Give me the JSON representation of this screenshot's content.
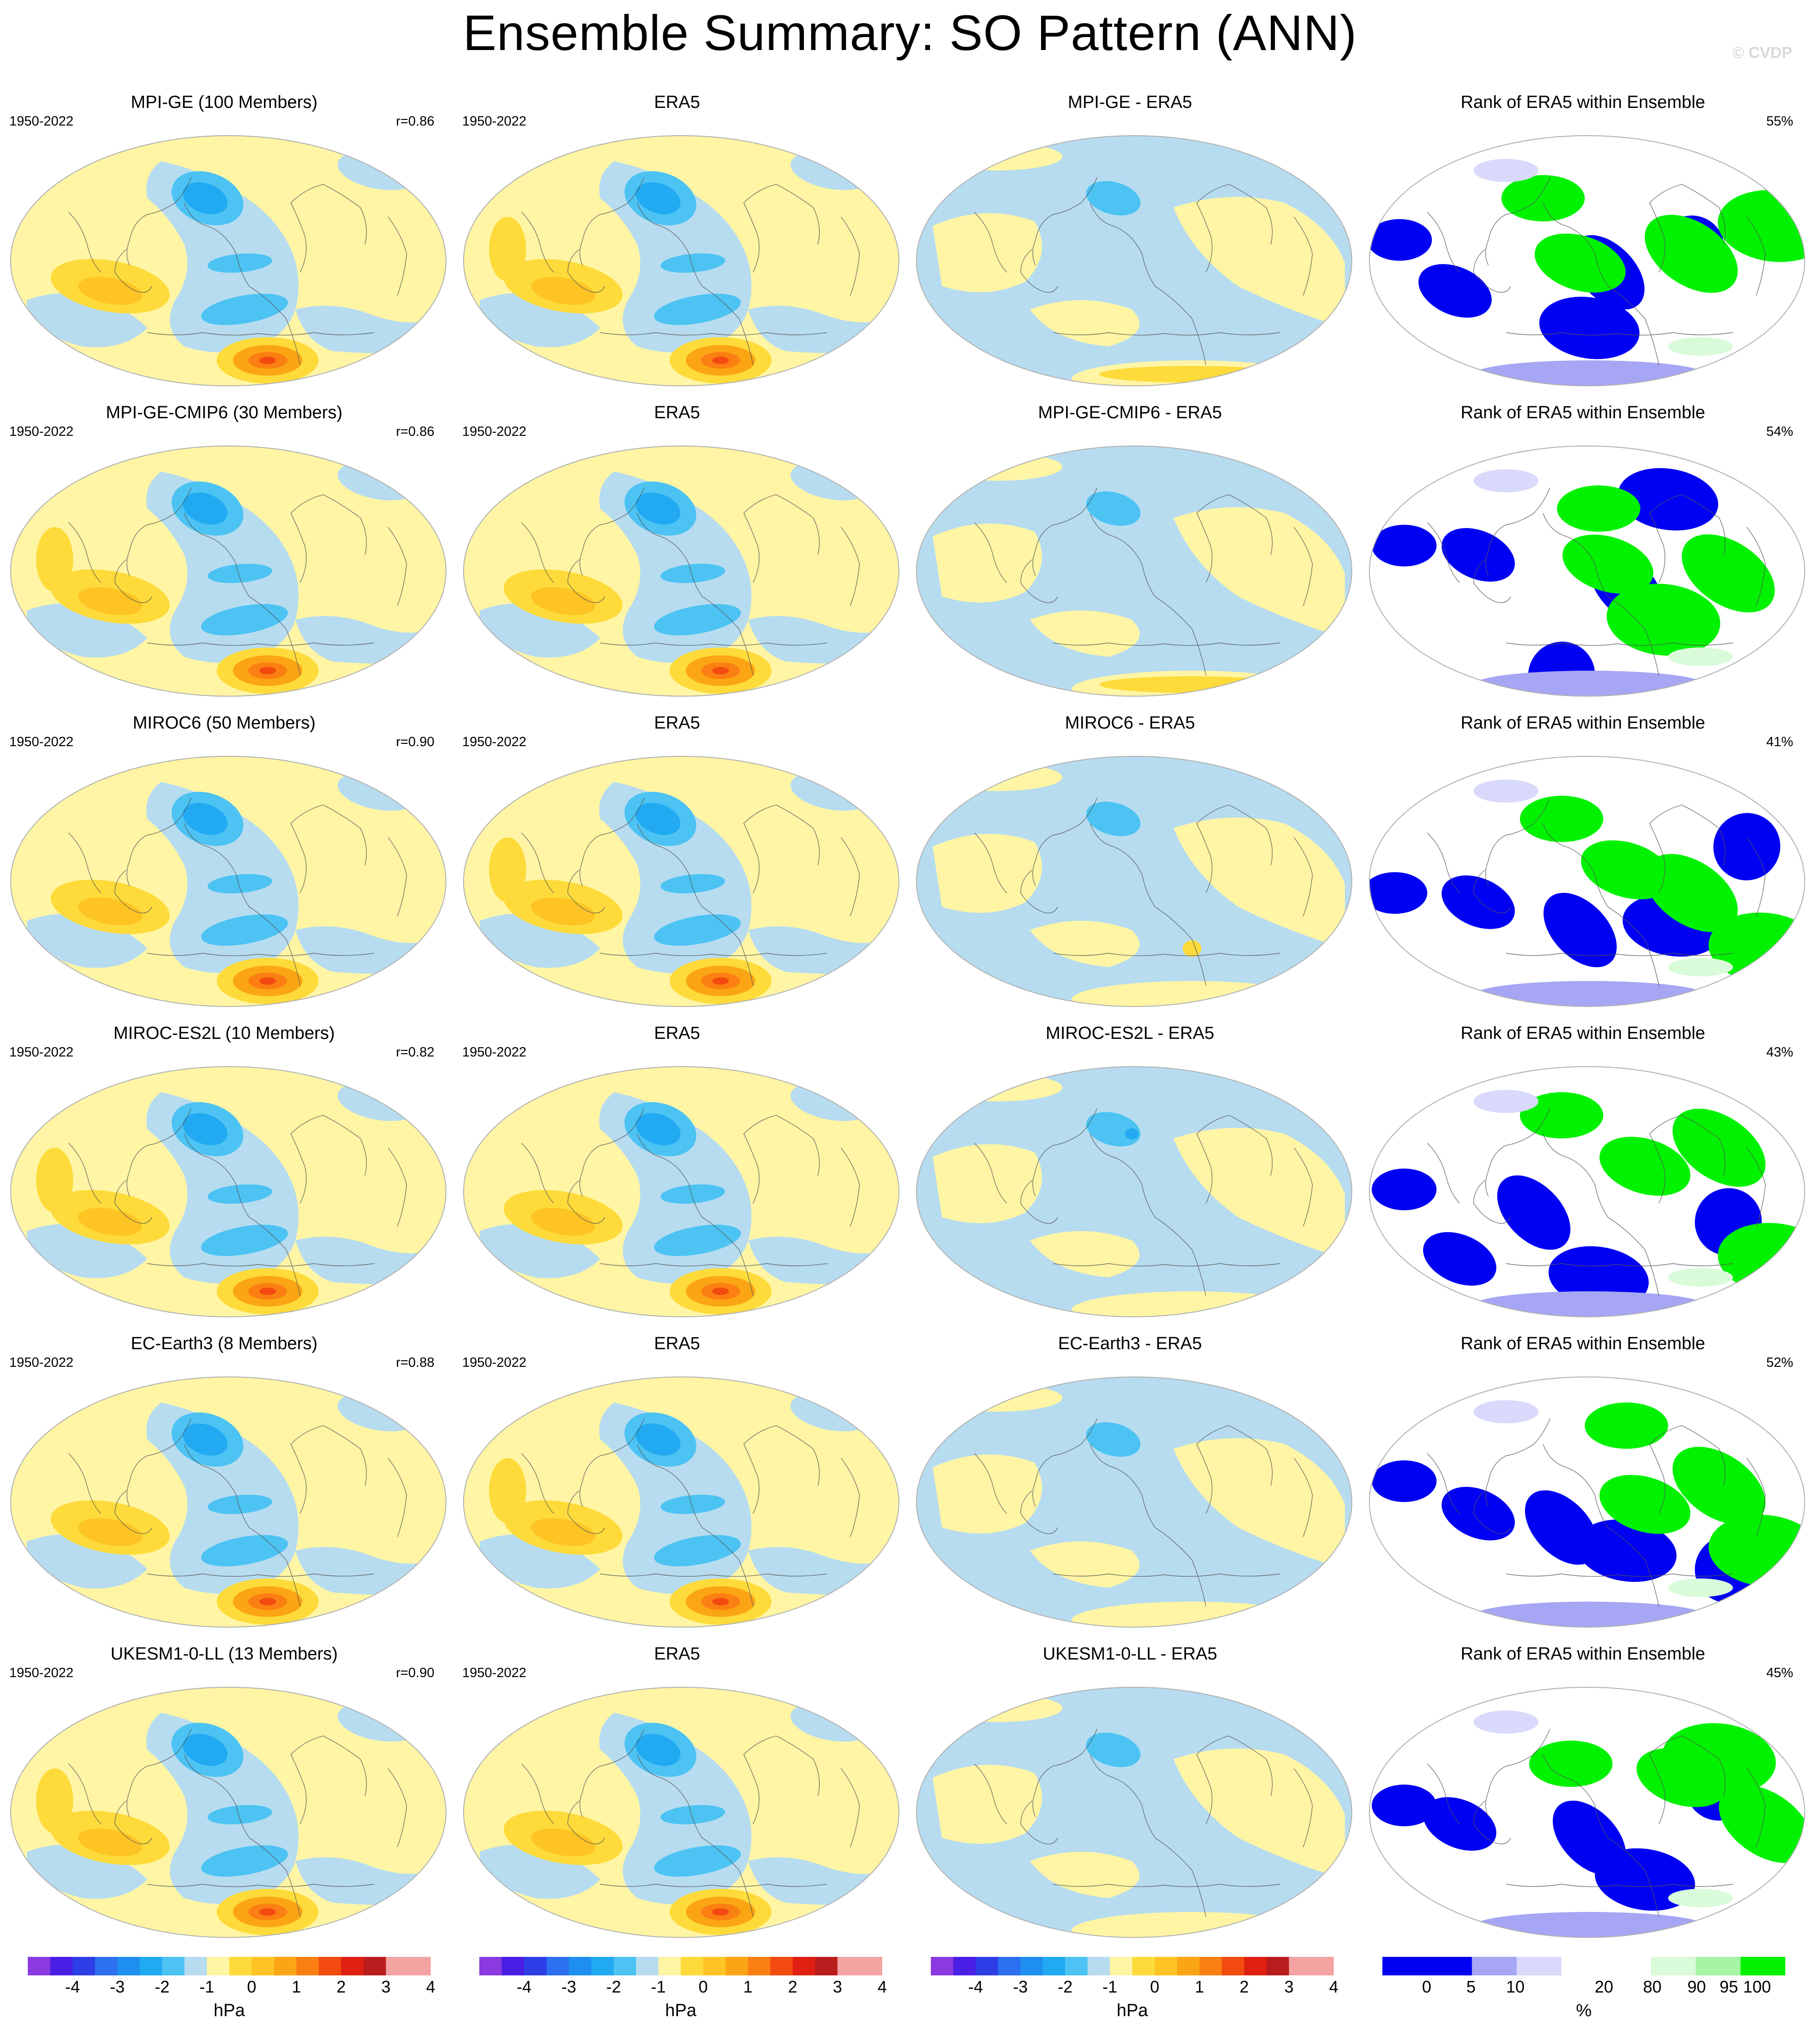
{
  "title": "Ensemble Summary: SO Pattern (ANN)",
  "credit": "© CVDP",
  "colors": {
    "neg4": "#8b3ae0",
    "neg35": "#4b1ee6",
    "neg3": "#2d3ee6",
    "neg25": "#2c6ff0",
    "neg2": "#1e8fee",
    "neg15": "#21aaf1",
    "neg1": "#4cc3f3",
    "neg05": "#b7dcf0",
    "pos05": "#fff5a5",
    "pos1": "#fedb3a",
    "pos15": "#fdc424",
    "pos2": "#fca514",
    "pos25": "#fb7f12",
    "pos3": "#f24a0f",
    "pos35": "#de1f12",
    "pos4": "#b91c1c",
    "pos45": "#f4a3a3",
    "rank_blue": "#0000f2",
    "rank_lav": "#a6a6f5",
    "rank_lav2": "#d9d9fb",
    "rank_white": "#ffffff",
    "rank_lgreen": "#d9fbd9",
    "rank_mgreen": "#a5f5a5",
    "rank_green": "#00f200",
    "coast": "#555555",
    "outline": "#b0b0b0"
  },
  "rows": [
    {
      "model_title": "MPI-GE (100 Members)",
      "period": "1950-2022",
      "corr": "r=0.86",
      "diff_title": "MPI-GE - ERA5",
      "rank_title": "Rank of ERA5 within Ensemble",
      "rank_pct": "55%"
    },
    {
      "model_title": "MPI-GE-CMIP6 (30 Members)",
      "period": "1950-2022",
      "corr": "r=0.86",
      "diff_title": "MPI-GE-CMIP6 - ERA5",
      "rank_title": "Rank of ERA5 within Ensemble",
      "rank_pct": "54%"
    },
    {
      "model_title": "MIROC6 (50 Members)",
      "period": "1950-2022",
      "corr": "r=0.90",
      "diff_title": "MIROC6 - ERA5",
      "rank_title": "Rank of ERA5 within Ensemble",
      "rank_pct": "41%"
    },
    {
      "model_title": "MIROC-ES2L (10 Members)",
      "period": "1950-2022",
      "corr": "r=0.82",
      "diff_title": "MIROC-ES2L - ERA5",
      "rank_title": "Rank of ERA5 within Ensemble",
      "rank_pct": "43%"
    },
    {
      "model_title": "EC-Earth3 (8 Members)",
      "period": "1950-2022",
      "corr": "r=0.88",
      "diff_title": "EC-Earth3 - ERA5",
      "rank_title": "Rank of ERA5 within Ensemble",
      "rank_pct": "52%"
    },
    {
      "model_title": "UKESM1-0-LL (13 Members)",
      "period": "1950-2022",
      "corr": "r=0.90",
      "diff_title": "UKESM1-0-LL - ERA5",
      "rank_title": "Rank of ERA5 within Ensemble",
      "rank_pct": "45%"
    }
  ],
  "obs": {
    "title": "ERA5",
    "period": "1950-2022"
  },
  "colorbars": {
    "pressure": {
      "tick_labels": [
        "-4",
        "-3",
        "-2",
        "-1",
        "0",
        "1",
        "2",
        "3",
        "4"
      ],
      "unit": "hPa"
    },
    "rank": {
      "tick_labels": [
        "0",
        "5",
        "10",
        "20",
        "80",
        "90",
        "95",
        "100"
      ],
      "unit": "%"
    }
  }
}
